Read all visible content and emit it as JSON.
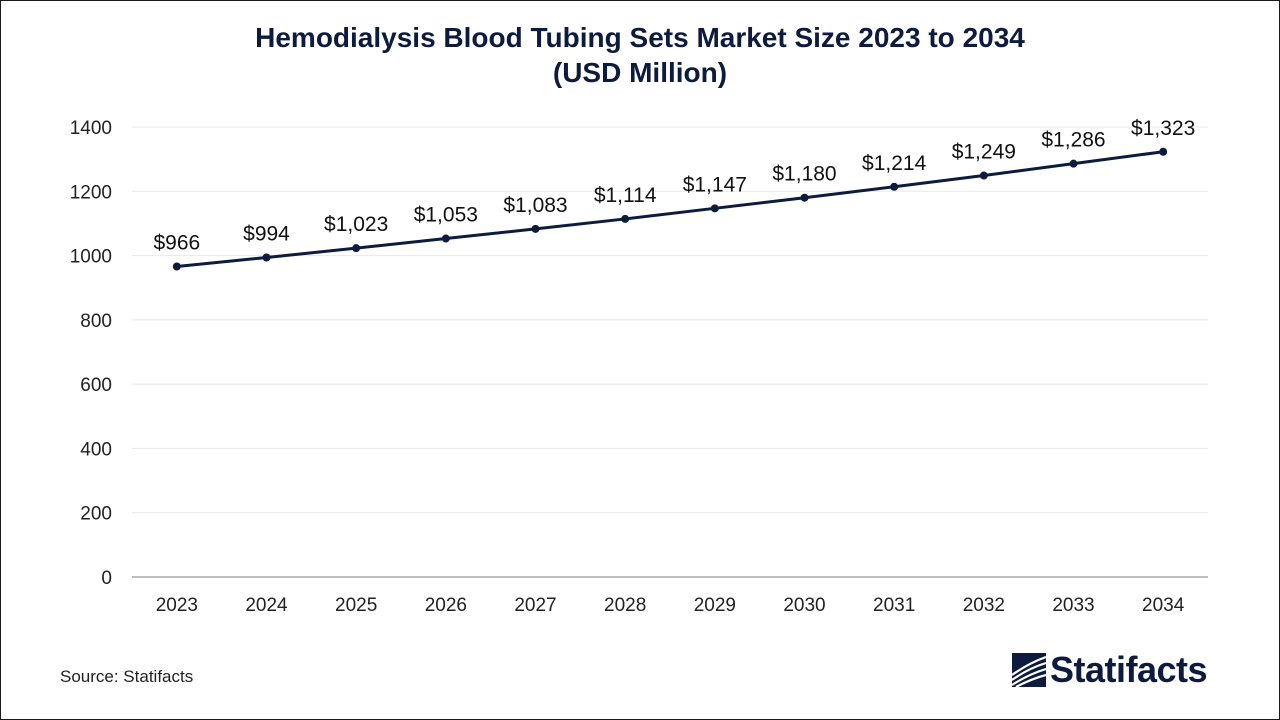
{
  "colors": {
    "line": "#0d1b3e",
    "title": "#0d1b3e",
    "grid": "#e8e8e8",
    "axis": "#aaaaaa",
    "text": "#222222"
  },
  "chart_data": {
    "type": "line",
    "title_line1": "Hemodialysis Blood Tubing Sets Market Size 2023 to 2034",
    "title_line2": "(USD Million)",
    "xlabel": "",
    "ylabel": "",
    "categories": [
      "2023",
      "2024",
      "2025",
      "2026",
      "2027",
      "2028",
      "2029",
      "2030",
      "2031",
      "2032",
      "2033",
      "2034"
    ],
    "values": [
      966,
      994,
      1023,
      1053,
      1083,
      1114,
      1147,
      1180,
      1214,
      1249,
      1286,
      1323
    ],
    "data_labels": [
      "$966",
      "$994",
      "$1,023",
      "$1,053",
      "$1,083",
      "$1,114",
      "$1,147",
      "$1,180",
      "$1,214",
      "$1,249",
      "$1,286",
      "$1,323"
    ],
    "ylim": [
      0,
      1400
    ],
    "yticks": [
      0,
      200,
      400,
      600,
      800,
      1000,
      1200,
      1400
    ],
    "grid": true,
    "legend": "none"
  },
  "footer": {
    "source": "Source: Statifacts",
    "brand_name": "Statifacts",
    "brand_icon": "statifacts-logo-icon"
  }
}
